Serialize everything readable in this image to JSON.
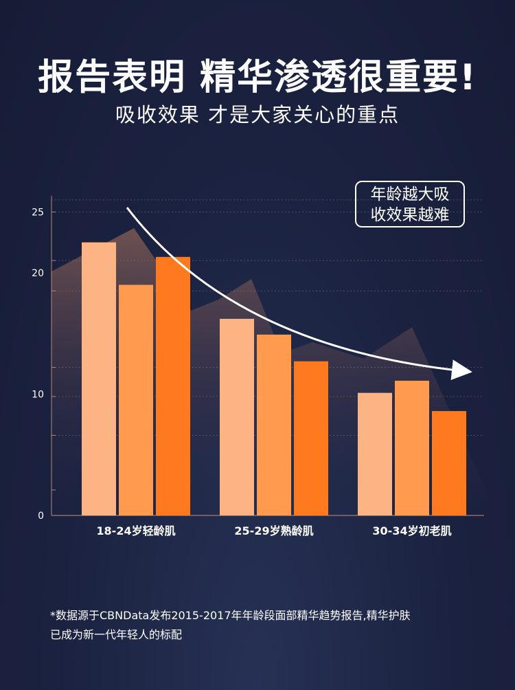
{
  "header": {
    "title": "报告表明 精华渗透很重要!",
    "subtitle": "吸收效果 才是大家关心的重点"
  },
  "callout": {
    "line1": "年龄越大吸",
    "line2": "收效果越难"
  },
  "chart_data": {
    "type": "bar",
    "categories": [
      "18-24岁轻龄肌",
      "25-29岁熟龄肌",
      "30-34岁初老肌"
    ],
    "series": [
      {
        "values": [
          22.5,
          19.0,
          21.3
        ]
      },
      {
        "values": [
          16.2,
          14.9,
          12.7
        ]
      },
      {
        "values": [
          10.1,
          11.1,
          8.6
        ]
      }
    ],
    "series_by": "category",
    "yticks": [
      0,
      10,
      20,
      25
    ],
    "ylim": [
      0,
      26.5
    ],
    "colors": [
      "#fdb485",
      "#ff9a4f",
      "#ff7a1e"
    ],
    "trend": "decreasing-arrow"
  },
  "footnote": {
    "line1": "*数据源于CBNData发布2015-2017年年龄段面部精华趋势报告,精华护肤",
    "line2": "已成为新一代年轻人的标配"
  }
}
